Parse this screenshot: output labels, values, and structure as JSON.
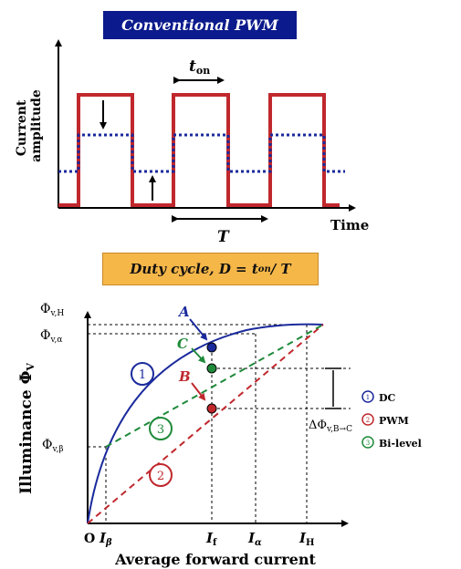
{
  "top_panel": {
    "title": "Conventional PWM",
    "y_label_line1": "Current",
    "y_label_line2": "amplitude",
    "x_label": "Time",
    "t_on_main": "t",
    "t_on_sub": "on",
    "period_label": "T"
  },
  "duty_cycle": {
    "prefix": "Duty cycle, D = t",
    "sub": "on",
    "suffix": " / T"
  },
  "bottom_panel": {
    "y_axis_label": "Illuminance Φ",
    "y_axis_sub": "V",
    "x_axis_label": "Average forward current",
    "origin_label": "O",
    "y_ticks": [
      {
        "main": "Φ",
        "sub": "v,H"
      },
      {
        "main": "Φ",
        "sub": "v,α"
      },
      {
        "main": "Φ",
        "sub": "v,β"
      }
    ],
    "x_ticks": [
      {
        "main": "I",
        "sub": "β"
      },
      {
        "main": "I",
        "sub": "f"
      },
      {
        "main": "I",
        "sub": "α"
      },
      {
        "main": "I",
        "sub": "H"
      }
    ],
    "points": {
      "A": "A",
      "B": "B",
      "C": "C"
    },
    "region_numbers": [
      "1",
      "2",
      "3"
    ],
    "delta_label": {
      "main": "ΔΦ",
      "sub": "v,B→C"
    }
  },
  "legend": {
    "items": [
      {
        "num": "1",
        "label": "DC",
        "color": "#1a2a9c"
      },
      {
        "num": "2",
        "label": "PWM",
        "color": "#c0282d"
      },
      {
        "num": "3",
        "label": "Bi-level",
        "color": "#1f8a3a"
      }
    ]
  },
  "colors": {
    "dc": "#1a2a9c",
    "pwm": "#c0282d",
    "bilevel": "#1f8a3a",
    "title_bg": "#0b1a8c",
    "duty_bg": "#f6b749"
  }
}
